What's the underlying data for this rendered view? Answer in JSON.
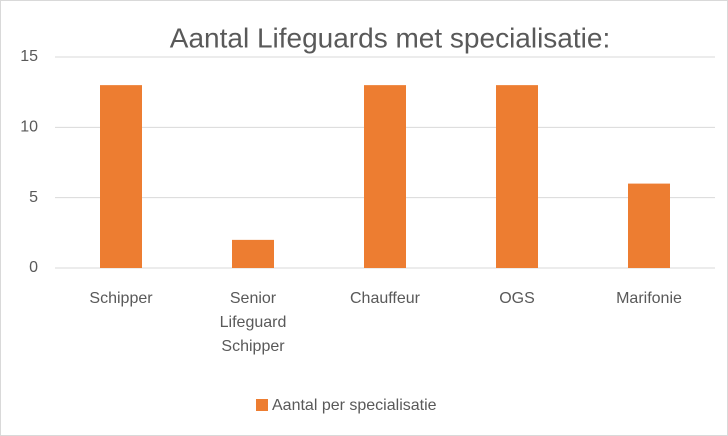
{
  "chart_data": {
    "type": "bar",
    "title": "Aantal Lifeguards met specialisatie:",
    "categories": [
      "Schipper",
      "Senior Lifeguard Schipper",
      "Chauffeur",
      "OGS",
      "Marifonie"
    ],
    "series": [
      {
        "name": "Aantal per specialisatie",
        "color": "#ed7d31",
        "values": [
          13,
          2,
          13,
          13,
          6
        ]
      }
    ],
    "ylim": [
      0,
      15
    ],
    "yticks": [
      0,
      5,
      10,
      15
    ],
    "grid": true,
    "legend": "bottom"
  }
}
